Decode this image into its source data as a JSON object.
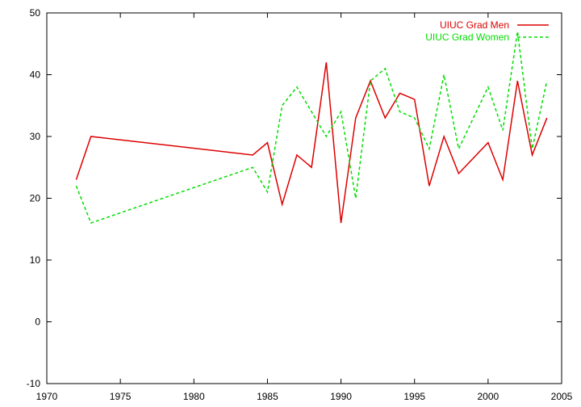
{
  "chart_data": {
    "type": "line",
    "title": "",
    "xlabel": "",
    "ylabel": "",
    "xlim": [
      1970,
      2005
    ],
    "ylim": [
      -10,
      50
    ],
    "xticks": [
      1970,
      1975,
      1980,
      1985,
      1990,
      1995,
      2000,
      2005
    ],
    "yticks": [
      -10,
      0,
      10,
      20,
      30,
      40,
      50
    ],
    "grid": false,
    "legend": "top-right",
    "series": [
      {
        "name": "UIUC Grad Men",
        "color": "#dd0000",
        "dash": "solid",
        "x": [
          1972,
          1973,
          1984,
          1985,
          1986,
          1987,
          1988,
          1989,
          1990,
          1991,
          1992,
          1993,
          1994,
          1995,
          1996,
          1997,
          1998,
          2000,
          2001,
          2002,
          2003,
          2004
        ],
        "y": [
          23,
          30,
          27,
          29,
          19,
          27,
          25,
          42,
          16,
          33,
          39,
          33,
          37,
          36,
          22,
          30,
          24,
          29,
          23,
          39,
          27,
          33
        ]
      },
      {
        "name": "UIUC Grad Women",
        "color": "#00dd00",
        "dash": "dashed",
        "x": [
          1972,
          1973,
          1984,
          1985,
          1986,
          1987,
          1989,
          1990,
          1991,
          1992,
          1993,
          1994,
          1995,
          1996,
          1997,
          1998,
          2000,
          2001,
          2002,
          2003,
          2004
        ],
        "y": [
          22,
          16,
          25,
          21,
          35,
          38,
          30,
          34,
          20,
          39,
          41,
          34,
          33,
          28,
          40,
          28,
          38,
          31,
          47,
          28,
          39
        ]
      }
    ]
  }
}
